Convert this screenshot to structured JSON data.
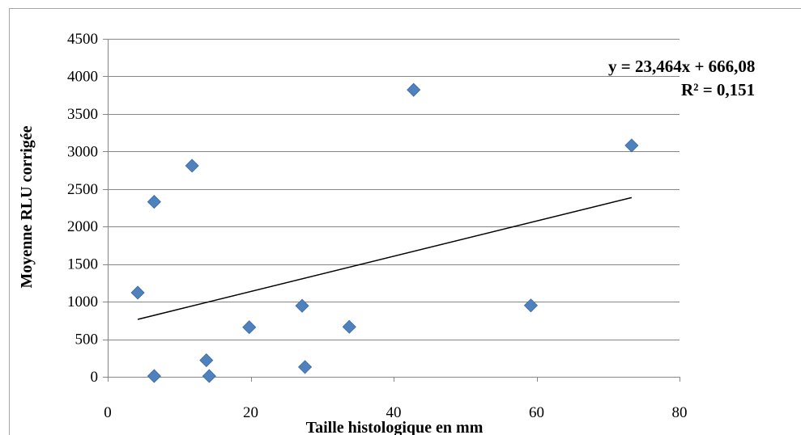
{
  "chart_data": {
    "type": "scatter",
    "xlabel": "Taille histologique en mm",
    "ylabel": "Moyenne RLU corrigée",
    "xlim": [
      0,
      80
    ],
    "ylim": [
      0,
      4500
    ],
    "x_ticks": [
      "0",
      "20",
      "40",
      "60",
      "80"
    ],
    "y_ticks": [
      "0",
      "500",
      "1000",
      "1500",
      "2000",
      "2500",
      "3000",
      "3500",
      "4000",
      "4500"
    ],
    "grid": "horizontal",
    "marker": "diamond",
    "marker_color": "#4f81bd",
    "points": [
      {
        "x": 4.2,
        "y": 1120
      },
      {
        "x": 6.5,
        "y": 2330
      },
      {
        "x": 6.5,
        "y": 10
      },
      {
        "x": 11.8,
        "y": 2810
      },
      {
        "x": 13.8,
        "y": 220
      },
      {
        "x": 14.2,
        "y": 10
      },
      {
        "x": 19.8,
        "y": 660
      },
      {
        "x": 27.2,
        "y": 945
      },
      {
        "x": 27.6,
        "y": 130
      },
      {
        "x": 33.8,
        "y": 665
      },
      {
        "x": 42.8,
        "y": 3820
      },
      {
        "x": 59.2,
        "y": 950
      },
      {
        "x": 73.3,
        "y": 3080
      }
    ],
    "trendline": {
      "type": "linear",
      "slope": 23.464,
      "intercept": 666.08,
      "x_range": [
        4.2,
        73.3
      ],
      "equation_label": "y = 23,464x + 666,08",
      "r2_label": "R² = 0,151"
    }
  }
}
